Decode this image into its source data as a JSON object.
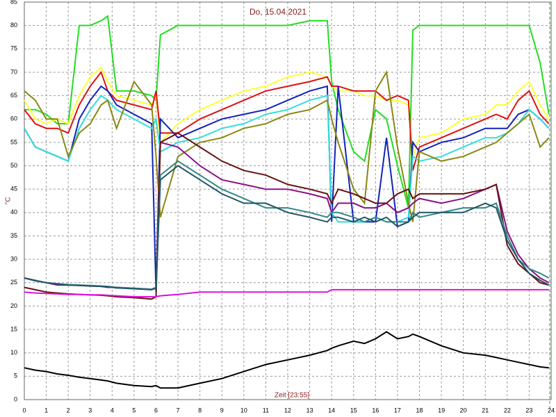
{
  "chart_data": {
    "type": "line",
    "title": "Do, 15.04.2021",
    "y_label": "°C",
    "x_label": "Zeit [23:55]",
    "grid": true,
    "xlim": [
      0,
      24
    ],
    "xticks": [
      0,
      1,
      2,
      3,
      4,
      5,
      6,
      7,
      8,
      9,
      10,
      11,
      12,
      13,
      14,
      15,
      16,
      17,
      18,
      19,
      20,
      21,
      22,
      23,
      24
    ],
    "ylim": [
      0,
      85
    ],
    "yticks": [
      0,
      5,
      10,
      15,
      20,
      25,
      30,
      35,
      40,
      45,
      50,
      55,
      60,
      65,
      70,
      75,
      80,
      85
    ],
    "x": [
      0,
      0.5,
      1,
      1.5,
      2,
      2.5,
      3,
      3.5,
      3.8,
      4.2,
      5,
      5.8,
      6,
      6.2,
      7,
      8,
      9,
      10,
      11,
      12,
      13,
      13.8,
      14,
      14.3,
      15,
      15.5,
      16,
      16.5,
      17,
      17.5,
      17.7,
      18,
      19,
      20,
      21,
      21.5,
      22,
      22.5,
      23,
      23.5,
      23.9
    ],
    "series": [
      {
        "color": "#22dd22",
        "values": [
          62,
          62,
          61,
          59,
          59,
          80,
          80,
          81,
          82,
          66,
          66,
          65,
          64,
          78,
          80,
          80,
          80,
          80,
          80,
          80,
          81,
          81,
          68,
          62,
          53,
          51,
          62,
          60,
          50,
          41,
          79,
          80,
          80,
          80,
          80,
          80,
          80,
          80,
          80,
          72,
          61
        ]
      },
      {
        "color": "#ffff33",
        "values": [
          64,
          60,
          59,
          60,
          59,
          65,
          69,
          71,
          68,
          65,
          64,
          63,
          65,
          55,
          59,
          62,
          64,
          66,
          67,
          69,
          70,
          69,
          67,
          66,
          66,
          65,
          65,
          64,
          64,
          63,
          52,
          56,
          57,
          60,
          61,
          63,
          63,
          66,
          68,
          63,
          60
        ]
      },
      {
        "color": "#dd1111",
        "values": [
          62,
          59,
          58,
          58,
          57,
          63,
          67,
          70,
          66,
          64,
          63,
          62,
          66,
          57,
          57,
          60,
          62,
          64,
          66,
          67,
          68,
          69,
          67,
          67,
          66,
          66,
          66,
          64,
          65,
          64,
          49,
          54,
          56,
          58,
          60,
          61,
          60,
          64,
          66,
          61,
          59
        ]
      },
      {
        "color": "#1122bb",
        "values": [
          58,
          54,
          53,
          52,
          51,
          60,
          64,
          67,
          66,
          63,
          61,
          59,
          23,
          60,
          56,
          58,
          60,
          61,
          62,
          64,
          66,
          67,
          38,
          67,
          38,
          38,
          38,
          56,
          37,
          38,
          55,
          53,
          55,
          56,
          58,
          58,
          58,
          61,
          62,
          60,
          58
        ]
      },
      {
        "color": "#33dddd",
        "values": [
          58,
          54,
          53,
          52,
          51,
          58,
          62,
          65,
          64,
          62,
          60,
          58,
          60,
          53,
          55,
          56,
          58,
          59,
          61,
          62,
          64,
          65,
          40,
          38,
          38,
          38,
          39,
          38,
          38,
          39,
          52,
          51,
          52,
          54,
          56,
          56,
          57,
          59,
          62,
          60,
          58
        ]
      },
      {
        "color": "#888811",
        "values": [
          66,
          64,
          60,
          60,
          52,
          57,
          59,
          63,
          64,
          58,
          68,
          63,
          52,
          39,
          52,
          55,
          56,
          58,
          59,
          61,
          62,
          64,
          60,
          55,
          45,
          42,
          66,
          70,
          54,
          42,
          38,
          53,
          51,
          52,
          54,
          55,
          57,
          59,
          61,
          54,
          56
        ]
      },
      {
        "color": "#881188",
        "values": [
          26,
          25.5,
          25,
          24.5,
          24.5,
          24.4,
          24.3,
          24.2,
          24,
          24,
          23.8,
          23.6,
          24,
          55,
          54,
          50,
          47,
          46,
          45,
          45,
          44,
          43,
          40,
          42,
          42,
          41,
          41,
          42,
          40,
          41,
          42,
          43,
          42,
          43,
          45,
          46,
          36,
          31,
          28,
          26,
          25
        ]
      },
      {
        "color": "#661111",
        "values": [
          24,
          23.5,
          23,
          22.8,
          22.6,
          22.5,
          22.4,
          22.3,
          22.2,
          22,
          21.8,
          21.5,
          22,
          55,
          57,
          54,
          51,
          49,
          48,
          46,
          45,
          44,
          42,
          45,
          44,
          43,
          42,
          42,
          44,
          45,
          43,
          44,
          44,
          44,
          45,
          46,
          33,
          29,
          27,
          25,
          24.5
        ]
      },
      {
        "color": "#338888",
        "values": [
          26,
          25.5,
          25,
          24.8,
          24.6,
          24.5,
          24.4,
          24.3,
          24.2,
          24,
          23.8,
          23.6,
          24,
          48,
          51,
          48,
          45,
          43,
          41,
          41,
          40,
          39,
          40,
          40,
          39,
          38,
          39,
          38,
          38,
          38,
          40,
          39,
          40,
          41,
          41,
          42,
          35,
          30,
          28,
          27,
          26
        ]
      },
      {
        "color": "#225566",
        "values": [
          26,
          25.4,
          25,
          24.7,
          24.5,
          24.4,
          24.3,
          24.2,
          24.1,
          23.9,
          23.7,
          23.5,
          23.8,
          47,
          50,
          47,
          44,
          42,
          42,
          40,
          39,
          38,
          39,
          39,
          38,
          39,
          38,
          39,
          37,
          38,
          39,
          40,
          40,
          40,
          42,
          41,
          34,
          30,
          27,
          25.5,
          24.5
        ]
      },
      {
        "color": "#dd11dd",
        "values": [
          23,
          22.8,
          22.7,
          22.6,
          22.5,
          22.5,
          22.4,
          22.4,
          22.3,
          22.2,
          22,
          22,
          22,
          22.2,
          22.5,
          23,
          23,
          23,
          23,
          23,
          23,
          23,
          23.5,
          23.5,
          23.5,
          23.5,
          23.5,
          23.5,
          23.5,
          23.5,
          23.5,
          23.5,
          23.5,
          23.5,
          23.5,
          23.5,
          23.5,
          23.5,
          23.5,
          23.5,
          23.5
        ]
      },
      {
        "color": "#000000",
        "values": [
          6.8,
          6.3,
          6,
          5.5,
          5.2,
          4.8,
          4.5,
          4.2,
          4,
          3.5,
          3,
          2.8,
          3,
          2.5,
          2.5,
          3.5,
          4.5,
          6,
          7.5,
          8.5,
          9.5,
          10.5,
          11,
          11.5,
          12.5,
          12,
          13,
          14.5,
          13,
          13.5,
          14,
          13.5,
          11.5,
          10,
          9.5,
          9,
          8.5,
          8,
          7.5,
          7,
          6.8
        ]
      }
    ]
  }
}
